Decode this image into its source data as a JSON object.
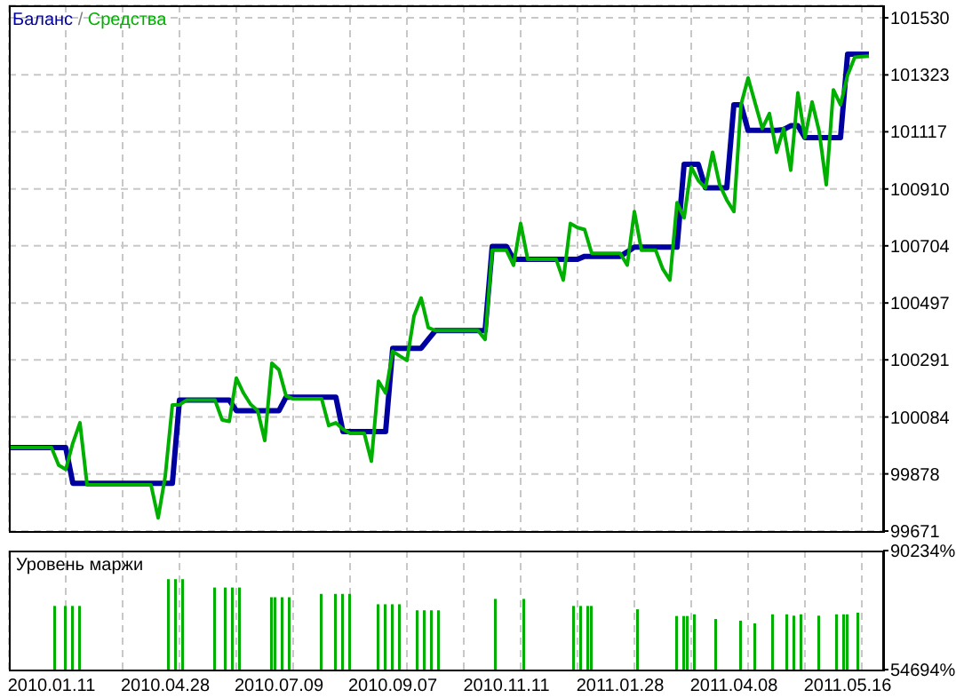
{
  "chart_data": [
    {
      "type": "line",
      "legend": "top left",
      "grid": true,
      "tick_labels": "y",
      "line_style": "solid",
      "annotations": [
        "/"
      ],
      "categories": [
        null,
        null,
        null,
        null,
        null,
        null,
        "2010.01.11",
        null,
        null,
        null,
        null,
        null,
        null,
        null,
        null,
        null,
        null,
        null,
        null,
        null,
        null,
        null,
        "2010.04.28",
        null,
        null,
        null,
        null,
        null,
        null,
        null,
        null,
        null,
        null,
        null,
        null,
        null,
        null,
        null,
        "2010.07.09",
        null,
        null,
        null,
        null,
        null,
        null,
        null,
        null,
        null,
        null,
        null,
        null,
        null,
        null,
        null,
        "2010.09.07",
        null,
        null,
        null,
        null,
        null,
        null,
        null,
        null,
        null,
        null,
        null,
        null,
        null,
        null,
        null,
        "2010.11.11",
        null,
        null,
        null,
        null,
        null,
        null,
        null,
        null,
        null,
        null,
        null,
        null,
        null,
        null,
        null,
        "2011.01.28",
        null,
        null,
        null,
        null,
        null,
        null,
        null,
        null,
        null,
        null,
        null,
        null,
        null,
        null,
        null,
        "2011.04.08",
        null,
        null,
        null,
        null,
        null,
        null,
        null,
        null,
        null,
        null,
        null,
        null,
        null,
        null,
        null,
        "2011.05.16",
        null,
        null,
        null,
        null,
        null
      ],
      "ylim": [
        99671,
        101575
      ],
      "yticks": [
        99671,
        99878,
        100084,
        100291,
        100497,
        100704,
        100910,
        101117,
        101323,
        101530
      ],
      "series": [
        {
          "name": "Баланс",
          "color": "#0000a0",
          "values": [
            99973,
            99973,
            99973,
            99973,
            99973,
            99973,
            99973,
            99973,
            99973,
            99844,
            99844,
            99844,
            99844,
            99844,
            99844,
            99844,
            99844,
            99844,
            99844,
            99844,
            99844,
            99844,
            99844,
            99844,
            100145,
            100145,
            100145,
            100145,
            100145,
            100145,
            100145,
            100145,
            100107,
            100107,
            100107,
            100107,
            100107,
            100107,
            100107,
            100156,
            100156,
            100156,
            100156,
            100156,
            100156,
            100156,
            100156,
            100031,
            100031,
            100031,
            100031,
            100031,
            100031,
            100031,
            100333,
            100333,
            100333,
            100333,
            100333,
            100365,
            100397,
            100397,
            100397,
            100397,
            100397,
            100397,
            100397,
            100397,
            100702,
            100702,
            100702,
            100655,
            100655,
            100655,
            100655,
            100655,
            100655,
            100655,
            100655,
            100655,
            100655,
            100666,
            100666,
            100666,
            100666,
            100666,
            100666,
            100682,
            100699,
            100699,
            100699,
            100699,
            100699,
            100699,
            100699,
            100999,
            100999,
            100999,
            100914,
            100914,
            100914,
            100914,
            101215,
            101215,
            101122,
            101122,
            101122,
            101122,
            101122,
            101125,
            101139,
            101139,
            101096,
            101096,
            101096,
            101096,
            101096,
            101096,
            101398,
            101398,
            101398,
            101398,
            null,
            null
          ]
        },
        {
          "name": "Средства",
          "color": "#00b000",
          "values": [
            99973,
            99973,
            99973,
            99973,
            99973,
            99973,
            99973,
            99910,
            99894,
            99990,
            100063,
            99838,
            99838,
            99838,
            99838,
            99838,
            99838,
            99838,
            99838,
            99838,
            99838,
            99719,
            99870,
            100128,
            100128,
            100145,
            100145,
            100145,
            100145,
            100145,
            100074,
            100068,
            100225,
            100171,
            100130,
            100107,
            99999,
            100279,
            100255,
            100160,
            100150,
            100150,
            100150,
            100150,
            100150,
            100053,
            100063,
            100040,
            100025,
            100025,
            100025,
            99924,
            100214,
            100171,
            100322,
            100305,
            100289,
            100450,
            100515,
            100408,
            100397,
            100397,
            100397,
            100397,
            100397,
            100397,
            100397,
            100365,
            100688,
            100688,
            100688,
            100634,
            100785,
            100655,
            100655,
            100655,
            100655,
            100655,
            100580,
            100785,
            100770,
            100763,
            100677,
            100677,
            100677,
            100677,
            100677,
            100634,
            100828,
            100688,
            100688,
            100688,
            100620,
            100580,
            100860,
            100806,
            100989,
            100940,
            100914,
            101043,
            100925,
            100870,
            100828,
            101215,
            101312,
            101220,
            101129,
            101183,
            101043,
            101129,
            100978,
            101258,
            101096,
            101225,
            101118,
            100925,
            101269,
            101215,
            101322,
            101387,
            101389,
            101391,
            null,
            null
          ]
        }
      ]
    },
    {
      "type": "bar",
      "title": "Уровень маржи",
      "grid": "x",
      "color": "#00b000",
      "categories": [
        null,
        null,
        null,
        null,
        null,
        null,
        null,
        null,
        null,
        null,
        null,
        null,
        "2010.01.11",
        null,
        null,
        null,
        null,
        null,
        null,
        null,
        null,
        null,
        null,
        null,
        null,
        null,
        null,
        null,
        null,
        null,
        null,
        null,
        null,
        null,
        null,
        null,
        null,
        null,
        null,
        null,
        null,
        null,
        null,
        null,
        "2010.04.28",
        null,
        null,
        null,
        null,
        null,
        null,
        null,
        null,
        null,
        null,
        null,
        null,
        null,
        null,
        null,
        null,
        null,
        null,
        null,
        null,
        null,
        null,
        null,
        null,
        null,
        null,
        null,
        null,
        null,
        null,
        null,
        "2010.07.09",
        null,
        null,
        null,
        null,
        null,
        null,
        null,
        null,
        null,
        null,
        null,
        null,
        null,
        null,
        null,
        null,
        null,
        null,
        null,
        null,
        null,
        null,
        null,
        null,
        null,
        null,
        null,
        null,
        null,
        null,
        null,
        "2010.09.07",
        null,
        null,
        null,
        null,
        null,
        null,
        null,
        null,
        null,
        null,
        null,
        null,
        null,
        null,
        null,
        null,
        null,
        null,
        null,
        null,
        null,
        null,
        null,
        null,
        null,
        null,
        null,
        null,
        null,
        null,
        null,
        "2010.11.11",
        null,
        null,
        null,
        null,
        null,
        null,
        null,
        null,
        null,
        null,
        null,
        null,
        null,
        null,
        null,
        null,
        null,
        null,
        null,
        null,
        null,
        null,
        null,
        null,
        null,
        null,
        null,
        null,
        null,
        null,
        null,
        "2011.01.28",
        null,
        null,
        null,
        null,
        null,
        null,
        null,
        null,
        null,
        null,
        null,
        null,
        null,
        null,
        null,
        null,
        null,
        null,
        null,
        null,
        null,
        null,
        null,
        null,
        null,
        null,
        null,
        null,
        null,
        null,
        null,
        "2011.04.08",
        null,
        null,
        null,
        null,
        null,
        null,
        null,
        null,
        null,
        null,
        null,
        null,
        null,
        null,
        null,
        null,
        null,
        null,
        null,
        null,
        null,
        null,
        null,
        null,
        null,
        null,
        null,
        null,
        null,
        null,
        null,
        "2011.05.16",
        null,
        null,
        null,
        null,
        null,
        null,
        null,
        null,
        null,
        null
      ],
      "ylim": [
        54694,
        90234
      ],
      "yticks": [
        {
          "value": 54694,
          "label": "54694%"
        },
        {
          "value": 90234,
          "label": "90234%"
        }
      ],
      "values": [
        null,
        null,
        null,
        null,
        null,
        null,
        null,
        null,
        null,
        null,
        null,
        null,
        null,
        73700,
        null,
        null,
        73700,
        null,
        73700,
        null,
        73700,
        null,
        null,
        null,
        null,
        null,
        null,
        null,
        null,
        null,
        null,
        null,
        null,
        null,
        null,
        null,
        null,
        null,
        null,
        null,
        null,
        null,
        null,
        null,
        null,
        81700,
        null,
        81700,
        null,
        81700,
        null,
        null,
        null,
        null,
        null,
        null,
        null,
        null,
        79200,
        null,
        null,
        79200,
        null,
        79200,
        null,
        79200,
        null,
        null,
        null,
        null,
        null,
        null,
        null,
        null,
        76300,
        76300,
        null,
        76300,
        null,
        76300,
        null,
        null,
        null,
        null,
        null,
        null,
        null,
        null,
        77300,
        null,
        null,
        null,
        77300,
        null,
        77300,
        null,
        77300,
        null,
        null,
        null,
        null,
        null,
        null,
        null,
        74200,
        null,
        74200,
        null,
        74200,
        null,
        74200,
        null,
        null,
        null,
        null,
        72400,
        null,
        72400,
        null,
        72400,
        null,
        72400,
        null,
        null,
        null,
        null,
        null,
        null,
        null,
        null,
        null,
        null,
        null,
        null,
        null,
        null,
        null,
        75800,
        null,
        null,
        null,
        null,
        null,
        null,
        null,
        75800,
        null,
        null,
        null,
        null,
        null,
        null,
        null,
        null,
        null,
        null,
        null,
        null,
        null,
        73700,
        null,
        73700,
        null,
        73700,
        73700,
        null,
        null,
        null,
        null,
        null,
        null,
        null,
        null,
        null,
        null,
        null,
        null,
        72700,
        null,
        null,
        null,
        null,
        null,
        null,
        null,
        null,
        null,
        null,
        70700,
        null,
        70700,
        70700,
        null,
        71200,
        null,
        null,
        null,
        null,
        null,
        69800,
        null,
        null,
        null,
        null,
        null,
        null,
        69300,
        null,
        null,
        null,
        68500,
        null,
        null,
        null,
        null,
        71200,
        null,
        null,
        null,
        71200,
        null,
        70800,
        null,
        71200,
        null,
        null,
        null,
        null,
        70800,
        null,
        null,
        null,
        null,
        71200,
        null,
        71200,
        71200,
        null,
        null,
        71700,
        null,
        null,
        null,
        null,
        null,
        null,
        null
      ]
    }
  ]
}
